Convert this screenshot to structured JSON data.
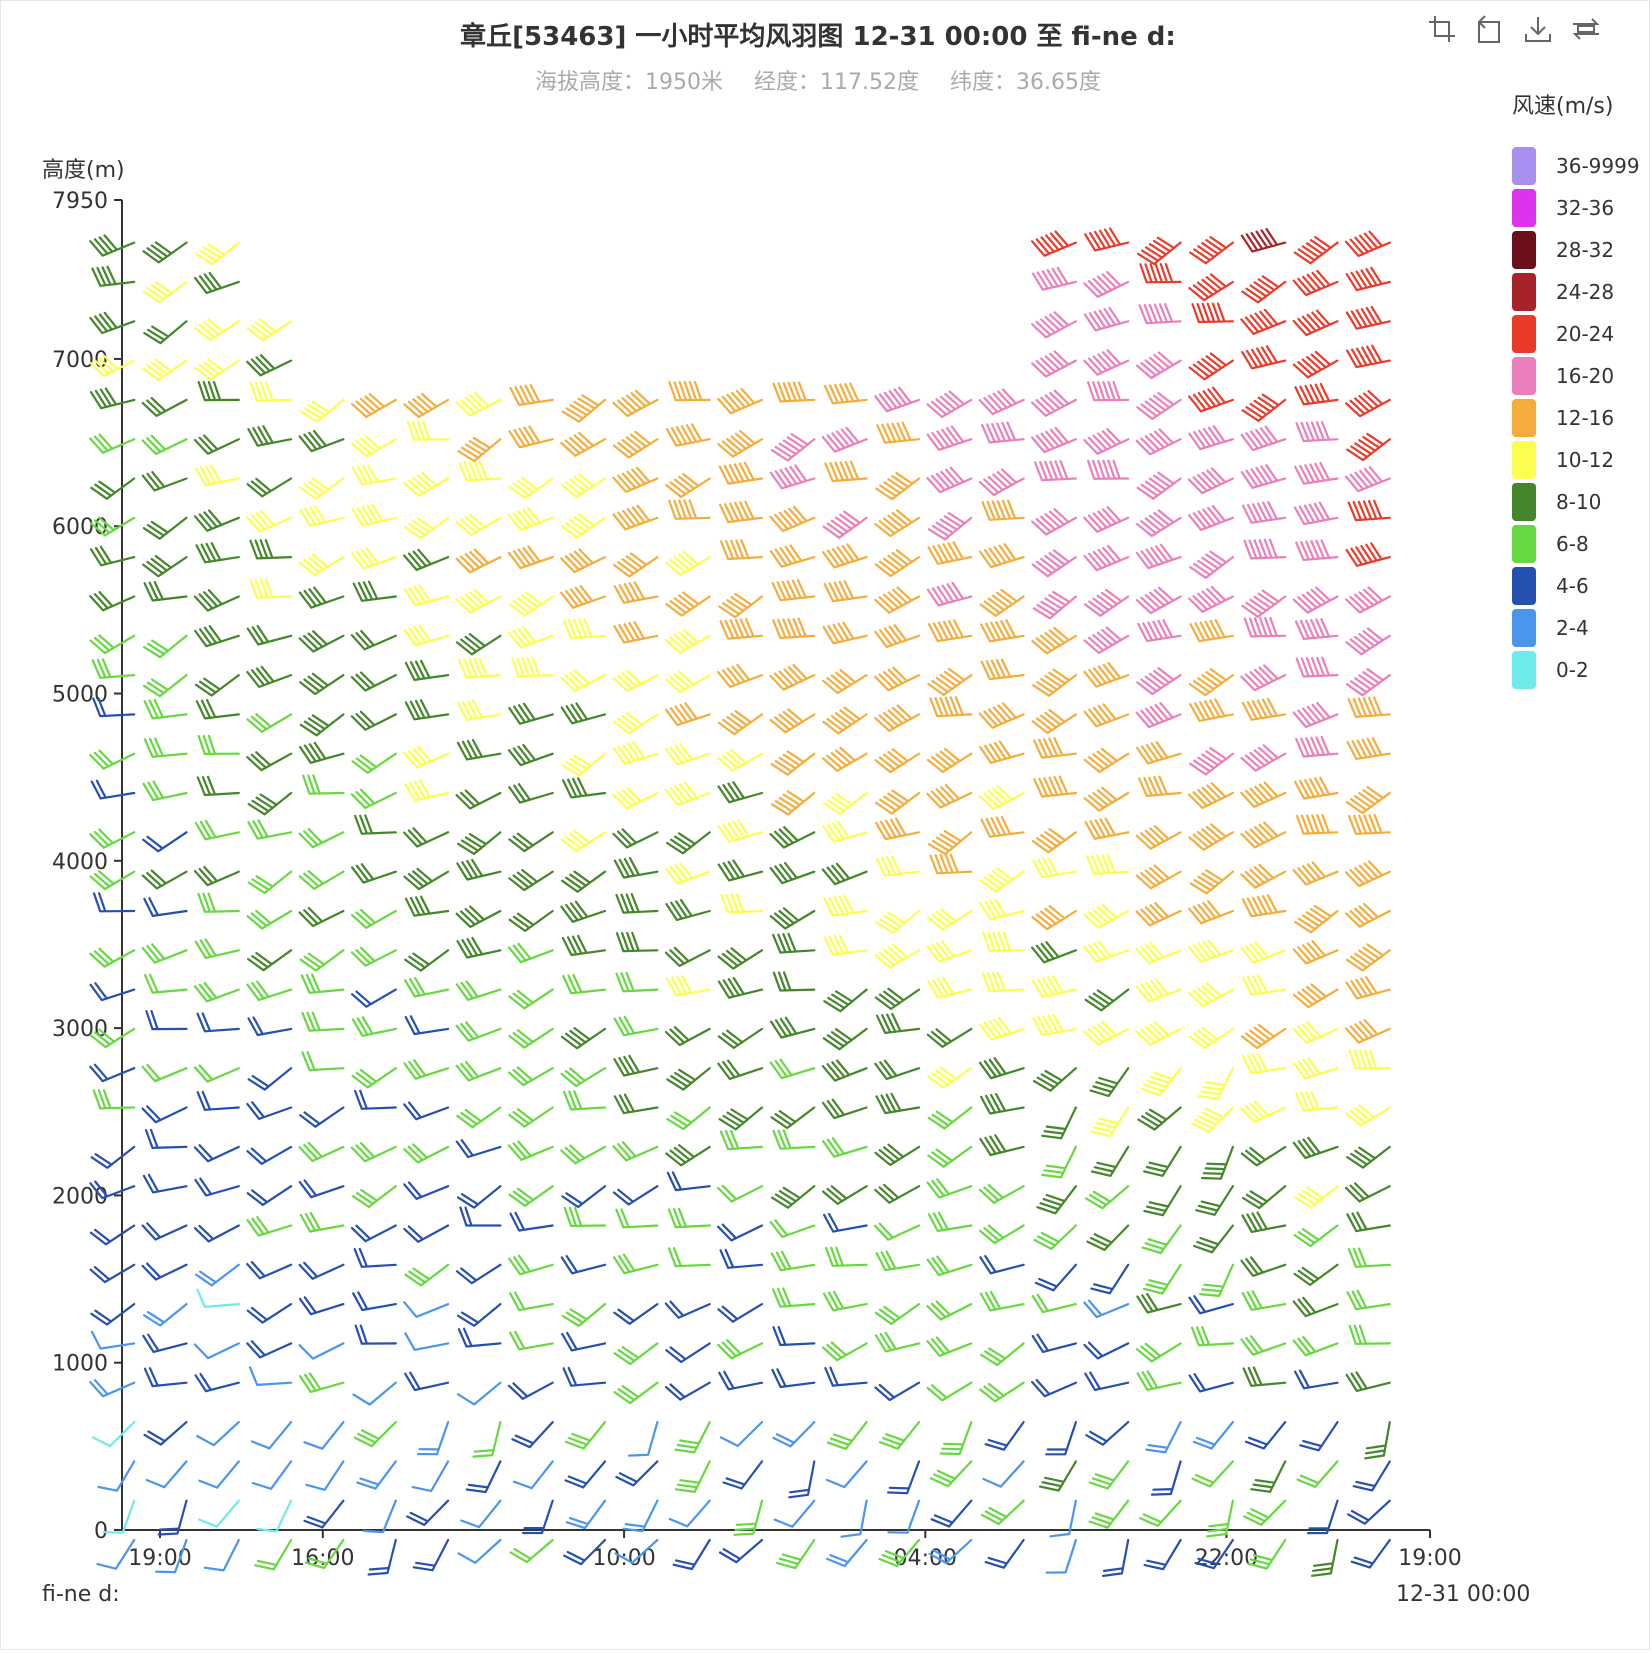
{
  "title": "章丘[53463] 一小时平均风羽图 12-31 00:00 至 fi-ne d:",
  "subtitle": {
    "altitude": "海拔高度：1950米",
    "longitude": "经度：117.52度",
    "latitude": "纬度：36.65度"
  },
  "toolbox": {
    "icons": [
      "zoom-icon",
      "zoom-reset-icon",
      "download-icon",
      "restore-icon"
    ]
  },
  "footer": {
    "left": "fi-ne d:",
    "right": "12-31 00:00"
  },
  "chart_data": {
    "type": "wind-barb",
    "yname": "高度(m)",
    "ylim": [
      0,
      7950
    ],
    "yticks": [
      "0",
      "1000",
      "2000",
      "3000",
      "4000",
      "5000",
      "6000",
      "7000",
      "7950"
    ],
    "xticks": [
      "19:00",
      "16:00",
      "10:00",
      "04:00",
      "22:00",
      "19:00"
    ],
    "legend_title": "风速(m/s)",
    "legend": [
      {
        "label": "36-9999",
        "color": "#a98ff0"
      },
      {
        "label": "32-36",
        "color": "#dd33ee"
      },
      {
        "label": "28-32",
        "color": "#6b0f1a"
      },
      {
        "label": "24-28",
        "color": "#a8222a"
      },
      {
        "label": "20-24",
        "color": "#ec3a2a"
      },
      {
        "label": "16-20",
        "color": "#ea7fbb"
      },
      {
        "label": "12-16",
        "color": "#f4ad3c"
      },
      {
        "label": "10-12",
        "color": "#fdfd50"
      },
      {
        "label": "8-10",
        "color": "#44862a"
      },
      {
        "label": "6-8",
        "color": "#66d840"
      },
      {
        "label": "4-6",
        "color": "#2650b0"
      },
      {
        "label": "2-4",
        "color": "#4a95ee"
      },
      {
        "label": "0-2",
        "color": "#6eeaea"
      }
    ]
  }
}
